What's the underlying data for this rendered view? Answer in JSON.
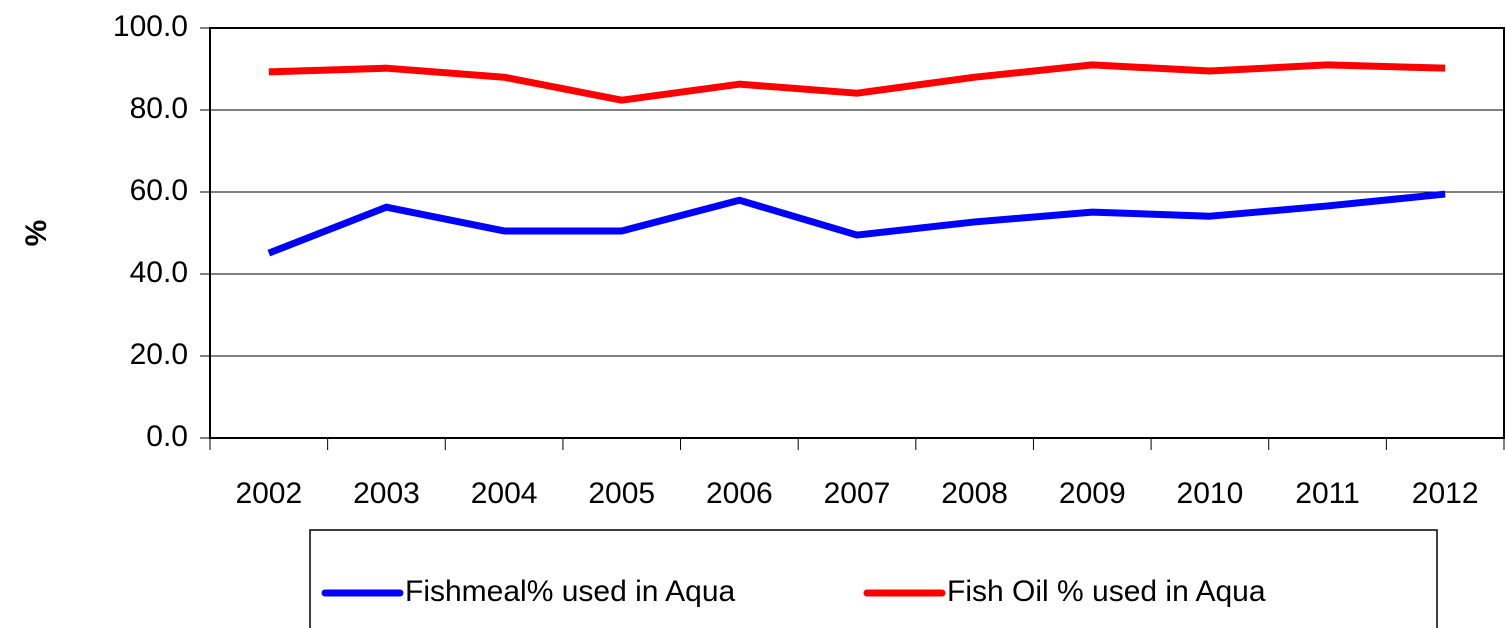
{
  "chart_data": {
    "type": "line",
    "y_label": "%",
    "categories": [
      "2002",
      "2003",
      "2004",
      "2005",
      "2006",
      "2007",
      "2008",
      "2009",
      "2010",
      "2011",
      "2012"
    ],
    "series": [
      {
        "name": "Fishmeal% used in Aqua",
        "color": "#0000ff",
        "values": [
          45.1,
          56.3,
          50.5,
          50.5,
          58.0,
          49.5,
          52.7,
          55.1,
          54.1,
          56.6,
          59.5
        ]
      },
      {
        "name": "Fish Oil % used in Aqua",
        "color": "#ff0000",
        "values": [
          89.3,
          90.2,
          88.0,
          82.4,
          86.3,
          84.1,
          88.0,
          91.0,
          89.5,
          91.0,
          90.2
        ]
      }
    ],
    "ylim": [
      0,
      100
    ],
    "yticks": [
      {
        "value": 0,
        "label": "0.0"
      },
      {
        "value": 20,
        "label": "20.0"
      },
      {
        "value": 40,
        "label": "40.0"
      },
      {
        "value": 60,
        "label": "60.0"
      },
      {
        "value": 80,
        "label": "80.0"
      },
      {
        "value": 100,
        "label": "100.0"
      }
    ],
    "grid": true,
    "legend": "bottom"
  }
}
